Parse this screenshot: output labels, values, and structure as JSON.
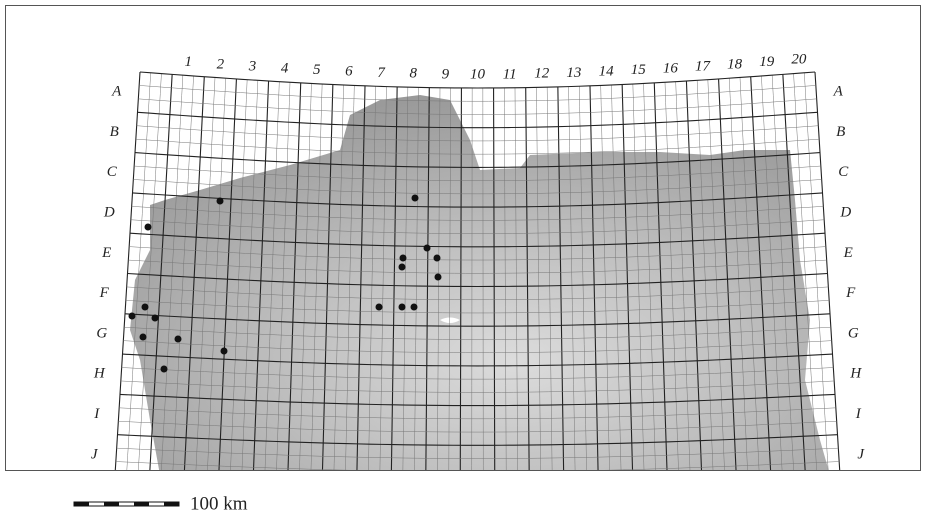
{
  "map": {
    "column_labels": [
      "1",
      "2",
      "3",
      "4",
      "5",
      "6",
      "7",
      "8",
      "9",
      "10",
      "11",
      "12",
      "13",
      "14",
      "15",
      "16",
      "17",
      "18",
      "19",
      "20"
    ],
    "row_labels": [
      "A",
      "B",
      "C",
      "D",
      "E",
      "F",
      "G",
      "H",
      "I",
      "J"
    ],
    "scale_label": "100 km"
  }
}
